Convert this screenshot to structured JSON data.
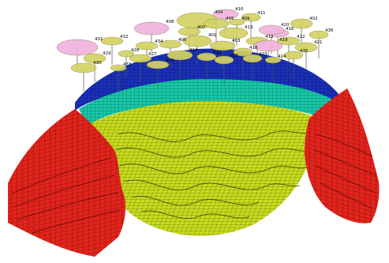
{
  "image": {
    "kind": "3d-reservoir-grid-model",
    "colors": {
      "background": "#ffffff",
      "flank": "#e3241c",
      "flank_grid": "#5a0c08",
      "core": "#c8dc1e",
      "core_grid": "#3c4a08",
      "cap": "#18c8a8",
      "crest": "#1a30b8",
      "well_disc": "#d4d264",
      "well_disc_highlight": "#f0b4e0",
      "well_line": "#555555"
    }
  },
  "wells": [
    {
      "label": "410"
    },
    {
      "label": "411"
    },
    {
      "label": "402"
    },
    {
      "label": "408"
    },
    {
      "label": "404"
    },
    {
      "label": "407"
    },
    {
      "label": "405"
    },
    {
      "label": "416"
    },
    {
      "label": "413"
    },
    {
      "label": "412"
    },
    {
      "label": "420"
    },
    {
      "label": "421"
    },
    {
      "label": "403"
    },
    {
      "label": "401"
    },
    {
      "label": "406"
    },
    {
      "label": "409"
    },
    {
      "label": "414"
    },
    {
      "label": "415"
    },
    {
      "label": "418"
    },
    {
      "label": "419"
    },
    {
      "label": "422"
    },
    {
      "label": "423"
    },
    {
      "label": "424"
    },
    {
      "label": "425"
    },
    {
      "label": "426"
    },
    {
      "label": "427"
    },
    {
      "label": "428"
    },
    {
      "label": "429"
    },
    {
      "label": "430"
    },
    {
      "label": "431"
    },
    {
      "label": "432"
    },
    {
      "label": "433"
    },
    {
      "label": "434"
    },
    {
      "label": "435"
    },
    {
      "label": "436"
    }
  ]
}
